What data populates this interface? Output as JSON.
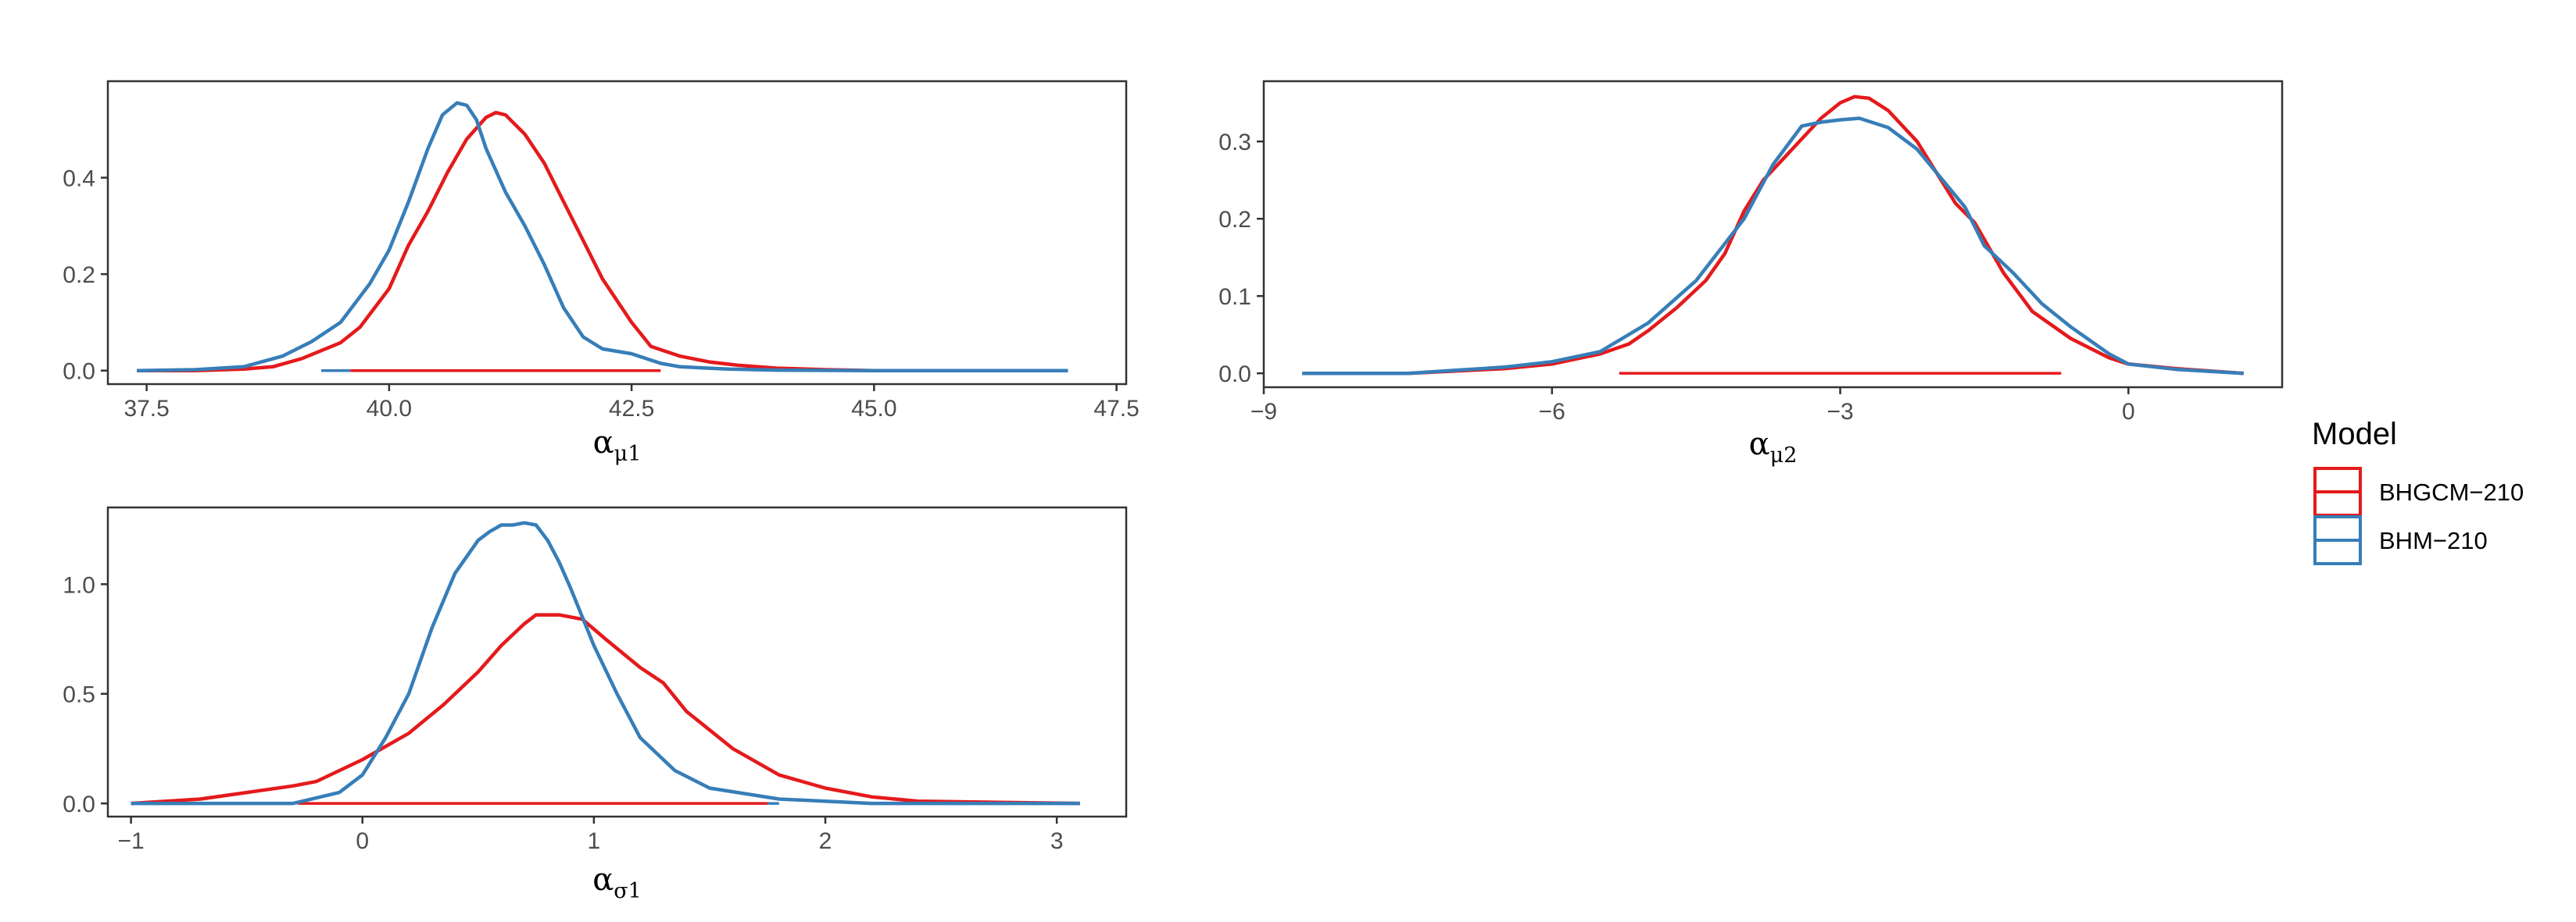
{
  "legend": {
    "title": "Model",
    "entries": [
      {
        "label": "BHGCM−210",
        "color": "#e41a1c"
      },
      {
        "label": "BHM−210",
        "color": "#377eb8"
      }
    ]
  },
  "chart_data": [
    {
      "type": "line",
      "xlabel": {
        "base": "α",
        "sub": "μ1"
      },
      "ylabel": "",
      "xlim": [
        37.1,
        47.6
      ],
      "ylim": [
        -0.028,
        0.6
      ],
      "xticks": [
        37.5,
        40.0,
        42.5,
        45.0,
        47.5
      ],
      "xtick_labels": [
        "37.5",
        "40.0",
        "42.5",
        "45.0",
        "47.5"
      ],
      "yticks": [
        0.0,
        0.2,
        0.4
      ],
      "ytick_labels": [
        "0.0",
        "0.2",
        "0.4"
      ],
      "grid": false,
      "series": [
        {
          "name": "BHGCM−210",
          "color": "#e41a1c",
          "x": [
            37.4,
            38.0,
            38.5,
            38.8,
            39.1,
            39.5,
            39.7,
            40.0,
            40.2,
            40.4,
            40.6,
            40.8,
            41.0,
            41.1,
            41.2,
            41.4,
            41.6,
            41.8,
            42.0,
            42.2,
            42.5,
            42.7,
            43.0,
            43.3,
            43.6,
            44.0,
            44.5,
            45.0,
            46.0,
            47.0
          ],
          "y": [
            0.0,
            0.0,
            0.003,
            0.008,
            0.025,
            0.058,
            0.09,
            0.17,
            0.26,
            0.33,
            0.41,
            0.48,
            0.525,
            0.535,
            0.53,
            0.49,
            0.43,
            0.35,
            0.27,
            0.19,
            0.1,
            0.05,
            0.03,
            0.018,
            0.011,
            0.005,
            0.002,
            0.0,
            0.0,
            0.0
          ],
          "hpd": [
            39.6,
            42.8
          ]
        },
        {
          "name": "BHM−210",
          "color": "#377eb8",
          "x": [
            37.4,
            38.0,
            38.5,
            38.9,
            39.2,
            39.5,
            39.8,
            40.0,
            40.2,
            40.4,
            40.55,
            40.7,
            40.8,
            40.9,
            41.0,
            41.2,
            41.4,
            41.6,
            41.8,
            42.0,
            42.2,
            42.5,
            42.8,
            43.0,
            43.5,
            44.0,
            45.0,
            46.0,
            47.0
          ],
          "y": [
            0.0,
            0.002,
            0.008,
            0.03,
            0.06,
            0.1,
            0.18,
            0.25,
            0.35,
            0.46,
            0.53,
            0.555,
            0.55,
            0.52,
            0.46,
            0.37,
            0.3,
            0.22,
            0.13,
            0.07,
            0.045,
            0.035,
            0.015,
            0.008,
            0.003,
            0.001,
            0.0,
            0.0,
            0.0
          ],
          "hpd": [
            39.3,
            39.6
          ]
        }
      ]
    },
    {
      "type": "line",
      "xlabel": {
        "base": "α",
        "sub": "μ2"
      },
      "ylabel": "",
      "xlim": [
        -9.0,
        1.6
      ],
      "ylim": [
        -0.018,
        0.378
      ],
      "xticks": [
        -9,
        -6,
        -3,
        0
      ],
      "xtick_labels": [
        "−9",
        "−6",
        "−3",
        "0"
      ],
      "yticks": [
        0.0,
        0.1,
        0.2,
        0.3
      ],
      "ytick_labels": [
        "0.0",
        "0.1",
        "0.2",
        "0.3"
      ],
      "grid": false,
      "series": [
        {
          "name": "BHGCM−210",
          "color": "#e41a1c",
          "x": [
            -8.6,
            -7.5,
            -7.0,
            -6.5,
            -6.0,
            -5.5,
            -5.2,
            -5.0,
            -4.7,
            -4.4,
            -4.2,
            -4.0,
            -3.8,
            -3.5,
            -3.2,
            -3.0,
            -2.85,
            -2.7,
            -2.5,
            -2.2,
            -2.0,
            -1.8,
            -1.6,
            -1.3,
            -1.0,
            -0.6,
            -0.2,
            0.0,
            0.5,
            1.2
          ],
          "y": [
            0.0,
            0.0,
            0.003,
            0.006,
            0.012,
            0.025,
            0.038,
            0.055,
            0.085,
            0.12,
            0.155,
            0.21,
            0.25,
            0.29,
            0.33,
            0.35,
            0.358,
            0.356,
            0.34,
            0.3,
            0.26,
            0.22,
            0.195,
            0.13,
            0.08,
            0.045,
            0.02,
            0.012,
            0.006,
            0.0
          ],
          "hpd": [
            -5.3,
            -0.7
          ]
        },
        {
          "name": "BHM−210",
          "color": "#377eb8",
          "x": [
            -8.6,
            -7.5,
            -7.0,
            -6.5,
            -6.0,
            -5.5,
            -5.0,
            -4.5,
            -4.0,
            -3.7,
            -3.4,
            -3.2,
            -3.0,
            -2.8,
            -2.5,
            -2.2,
            -2.0,
            -1.7,
            -1.5,
            -1.2,
            -0.9,
            -0.6,
            -0.2,
            0.0,
            0.5,
            1.2
          ],
          "y": [
            0.0,
            0.0,
            0.004,
            0.008,
            0.015,
            0.028,
            0.065,
            0.12,
            0.2,
            0.27,
            0.32,
            0.325,
            0.328,
            0.33,
            0.318,
            0.29,
            0.26,
            0.215,
            0.165,
            0.13,
            0.09,
            0.06,
            0.025,
            0.012,
            0.005,
            0.0
          ],
          "hpd": []
        }
      ]
    },
    {
      "type": "line",
      "xlabel": {
        "base": "α",
        "sub": "σ1"
      },
      "ylabel": "",
      "xlim": [
        -1.1,
        3.3
      ],
      "ylim": [
        -0.06,
        1.35
      ],
      "xticks": [
        -1,
        0,
        1,
        2,
        3
      ],
      "xtick_labels": [
        "−1",
        "0",
        "1",
        "2",
        "3"
      ],
      "yticks": [
        0.0,
        0.5,
        1.0
      ],
      "ytick_labels": [
        "0.0",
        "0.5",
        "1.0"
      ],
      "grid": false,
      "series": [
        {
          "name": "BHGCM−210",
          "color": "#e41a1c",
          "x": [
            -1.0,
            -0.7,
            -0.5,
            -0.3,
            -0.2,
            0.0,
            0.2,
            0.35,
            0.5,
            0.6,
            0.7,
            0.75,
            0.85,
            0.95,
            1.05,
            1.2,
            1.3,
            1.4,
            1.6,
            1.8,
            2.0,
            2.2,
            2.4,
            3.1
          ],
          "y": [
            0.0,
            0.02,
            0.05,
            0.08,
            0.1,
            0.2,
            0.32,
            0.45,
            0.6,
            0.72,
            0.82,
            0.86,
            0.86,
            0.84,
            0.75,
            0.62,
            0.55,
            0.42,
            0.25,
            0.13,
            0.07,
            0.03,
            0.01,
            0.0
          ],
          "hpd": [
            -0.28,
            1.75
          ]
        },
        {
          "name": "BHM−210",
          "color": "#377eb8",
          "x": [
            -1.0,
            -0.3,
            -0.1,
            0.0,
            0.1,
            0.2,
            0.3,
            0.4,
            0.5,
            0.55,
            0.6,
            0.65,
            0.7,
            0.75,
            0.8,
            0.85,
            0.9,
            1.0,
            1.1,
            1.2,
            1.35,
            1.5,
            1.8,
            2.2,
            3.1
          ],
          "y": [
            0.0,
            0.0,
            0.05,
            0.13,
            0.3,
            0.5,
            0.8,
            1.05,
            1.2,
            1.24,
            1.27,
            1.27,
            1.28,
            1.27,
            1.2,
            1.1,
            0.98,
            0.72,
            0.5,
            0.3,
            0.15,
            0.07,
            0.02,
            0.0,
            0.0
          ],
          "hpd": [
            1.75,
            1.8
          ]
        }
      ]
    }
  ]
}
